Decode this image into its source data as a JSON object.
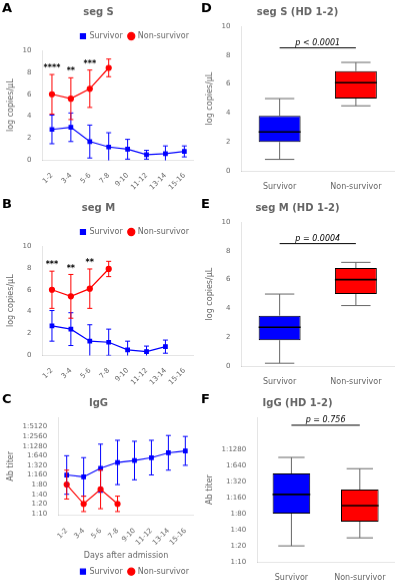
{
  "chart_data": [
    {
      "type": "line",
      "panel_label": "A",
      "title": "seg S",
      "categories": [
        "1-2",
        "3-4",
        "5-6",
        "7-8",
        "9-10",
        "11-12",
        "13-14",
        "15-16"
      ],
      "series": [
        {
          "name": "Survivor",
          "color": "#0000FF",
          "marker": "square",
          "line_style": "solid",
          "values": [
            2.8,
            3.0,
            1.7,
            1.2,
            1.0,
            0.5,
            0.6,
            0.8
          ],
          "errors": [
            1.3,
            1.3,
            1.5,
            1.3,
            0.9,
            0.4,
            0.7,
            0.5
          ]
        },
        {
          "name": "Non-survivor",
          "color": "#FF0000",
          "marker": "circle",
          "line_style": "solid",
          "values": [
            6.0,
            5.6,
            6.5,
            8.4,
            null,
            null,
            null,
            null
          ],
          "errors": [
            1.8,
            1.9,
            1.7,
            0.8,
            null,
            null,
            null,
            null
          ]
        }
      ],
      "annotations": [
        {
          "text": "****",
          "x": "1-2"
        },
        {
          "text": "**",
          "x": "3-4"
        },
        {
          "text": "***",
          "x": "5-6"
        }
      ],
      "ylabel": "log copies/μL",
      "ylim": [
        0,
        10
      ],
      "yticks": [
        0,
        2,
        4,
        6,
        8,
        10
      ],
      "grid": false,
      "legend": "upper right"
    },
    {
      "type": "line",
      "panel_label": "B",
      "title": "seg M",
      "categories": [
        "1-2",
        "3-4",
        "5-6",
        "7-8",
        "9-10",
        "11-12",
        "13-14",
        "15-16"
      ],
      "series": [
        {
          "name": "Survivor",
          "color": "#0000FF",
          "marker": "square",
          "line_style": "solid",
          "values": [
            2.7,
            2.4,
            1.3,
            1.2,
            0.5,
            0.35,
            0.8,
            null
          ],
          "errors": [
            1.4,
            1.5,
            1.5,
            1.2,
            0.8,
            0.5,
            0.6,
            null
          ]
        },
        {
          "name": "Non-survivor",
          "color": "#FF0000",
          "marker": "circle",
          "line_style": "solid",
          "values": [
            6.0,
            5.4,
            6.1,
            7.9,
            null,
            null,
            null,
            null
          ],
          "errors": [
            1.7,
            2.0,
            1.8,
            0.7,
            null,
            null,
            null,
            null
          ]
        }
      ],
      "annotations": [
        {
          "text": "***",
          "x": "1-2"
        },
        {
          "text": "**",
          "x": "3-4"
        },
        {
          "text": "**",
          "x": "5-6"
        }
      ],
      "ylabel": "log copies/μL",
      "ylim": [
        0,
        10
      ],
      "yticks": [
        0,
        2,
        4,
        6,
        8,
        10
      ],
      "grid": false,
      "legend": "upper right"
    },
    {
      "type": "line",
      "panel_label": "C",
      "title": "IgG",
      "categories": [
        "1-2",
        "3-4",
        "5-6",
        "7-8",
        "9-10",
        "11-12",
        "13-14",
        "15-16"
      ],
      "series": [
        {
          "name": "Survivor",
          "color": "#0000FF",
          "marker": "square",
          "line_style": "solid",
          "values": [
            4.0,
            3.8,
            4.7,
            5.3,
            5.5,
            5.8,
            6.3,
            6.5
          ],
          "errors": [
            2.0,
            2.0,
            2.5,
            2.3,
            2.0,
            1.8,
            1.8,
            1.5
          ]
        },
        {
          "name": "Non-survivor",
          "color": "#FF0000",
          "marker": "circle",
          "line_style": "solid",
          "values": [
            3.0,
            1.0,
            2.5,
            1.0,
            null,
            null,
            null,
            null
          ],
          "errors": [
            1.5,
            0.8,
            2.0,
            0.8,
            null,
            null,
            null,
            null
          ]
        }
      ],
      "xlabel": "Days after admission",
      "ylabel": "Ab titer",
      "ylim": [
        -0.2,
        10
      ],
      "yticks": [
        {
          "value": 0,
          "label": "1:10"
        },
        {
          "value": 1,
          "label": "1:20"
        },
        {
          "value": 2,
          "label": "1:40"
        },
        {
          "value": 3,
          "label": "1:80"
        },
        {
          "value": 4,
          "label": "1:160"
        },
        {
          "value": 5,
          "label": "1:320"
        },
        {
          "value": 6,
          "label": "1:640"
        },
        {
          "value": 7,
          "label": "1:1280"
        },
        {
          "value": 8,
          "label": "1:2560"
        },
        {
          "value": 9,
          "label": "1:5120"
        }
      ],
      "grid": false,
      "legend": "lower right"
    },
    {
      "type": "box",
      "panel_label": "D",
      "title": "seg S (HD 1-2)",
      "categories": [
        "Survivor",
        "Non-survivor"
      ],
      "colors": [
        "#0000FF",
        "#FF0000"
      ],
      "boxes": [
        {
          "q1": 2.0,
          "median": 2.7,
          "q3": 3.8,
          "whisker_low": 0.8,
          "whisker_high": 5.0
        },
        {
          "q1": 5.0,
          "median": 6.1,
          "q3": 6.9,
          "whisker_low": 4.5,
          "whisker_high": 7.5
        }
      ],
      "annotations": [
        {
          "text": "p < 0.0001",
          "y": 8.5
        }
      ],
      "ylabel": "log copies/μL",
      "ylim": [
        0,
        10
      ],
      "yticks": [
        0,
        2,
        4,
        6,
        8,
        10
      ],
      "grid": false
    },
    {
      "type": "box",
      "panel_label": "E",
      "title": "seg M (HD 1-2)",
      "categories": [
        "Survivor",
        "Non-survivor"
      ],
      "colors": [
        "#0000FF",
        "#FF0000"
      ],
      "boxes": [
        {
          "q1": 1.8,
          "median": 2.7,
          "q3": 3.5,
          "whisker_low": 0.2,
          "whisker_high": 5.0
        },
        {
          "q1": 5.0,
          "median": 6.0,
          "q3": 6.8,
          "whisker_low": 4.2,
          "whisker_high": 7.2
        }
      ],
      "annotations": [
        {
          "text": "p = 0.0004",
          "y": 8.5
        }
      ],
      "ylabel": "log copies/μL",
      "ylim": [
        0,
        10
      ],
      "yticks": [
        0,
        2,
        4,
        6,
        8,
        10
      ],
      "grid": false
    },
    {
      "type": "box",
      "panel_label": "F",
      "title": "IgG (HD 1-2)",
      "categories": [
        "Survivor",
        "Non-survivor"
      ],
      "colors": [
        "#0000FF",
        "#FF0000"
      ],
      "boxes": [
        {
          "q1": 3.0,
          "median": 4.2,
          "q3": 5.5,
          "whisker_low": 1.0,
          "whisker_high": 6.5
        },
        {
          "q1": 2.5,
          "median": 3.5,
          "q3": 4.5,
          "whisker_low": 1.5,
          "whisker_high": 5.8
        }
      ],
      "annotations": [
        {
          "text": "p = 0.756",
          "y": 8.5
        }
      ],
      "ylabel": "Ab titer",
      "ylim": [
        0,
        9
      ],
      "yticks": [
        {
          "value": 0,
          "label": "1:10"
        },
        {
          "value": 1,
          "label": "1:20"
        },
        {
          "value": 2,
          "label": "1:40"
        },
        {
          "value": 3,
          "label": "1:80"
        },
        {
          "value": 4,
          "label": "1:160"
        },
        {
          "value": 5,
          "label": "1:320"
        },
        {
          "value": 6,
          "label": "1:640"
        },
        {
          "value": 7,
          "label": "1:1280"
        }
      ],
      "grid": false
    }
  ]
}
